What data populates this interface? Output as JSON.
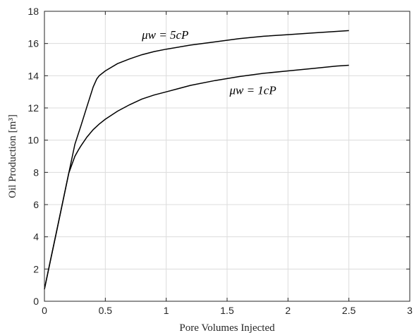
{
  "chart_data": {
    "type": "line",
    "xlabel": "Pore Volumes Injected",
    "ylabel": "Oil Production [m³]",
    "xlim": [
      0,
      3
    ],
    "ylim": [
      0,
      18
    ],
    "x_ticks": [
      "0",
      "0.5",
      "1",
      "1.5",
      "2",
      "2.5",
      "3"
    ],
    "y_ticks": [
      "0",
      "2",
      "4",
      "6",
      "8",
      "10",
      "12",
      "14",
      "16",
      "18"
    ],
    "grid": true,
    "legend": "none",
    "series": [
      {
        "color": "#000000",
        "x": [
          0,
          0.05,
          0.1,
          0.15,
          0.2,
          0.25,
          0.3,
          0.35,
          0.4,
          0.43,
          0.45,
          0.5,
          0.6,
          0.7,
          0.8,
          0.9,
          1.0,
          1.2,
          1.4,
          1.6,
          1.8,
          2.0,
          2.2,
          2.4,
          2.5
        ],
        "y": [
          0.75,
          2.55,
          4.35,
          6.15,
          7.95,
          9.75,
          10.9,
          12.1,
          13.3,
          13.8,
          14.0,
          14.3,
          14.75,
          15.05,
          15.3,
          15.5,
          15.65,
          15.9,
          16.1,
          16.3,
          16.45,
          16.55,
          16.65,
          16.75,
          16.8
        ]
      },
      {
        "color": "#000000",
        "x": [
          0,
          0.05,
          0.1,
          0.15,
          0.2,
          0.25,
          0.28,
          0.3,
          0.35,
          0.4,
          0.45,
          0.5,
          0.6,
          0.7,
          0.8,
          0.9,
          1.0,
          1.2,
          1.4,
          1.6,
          1.8,
          2.0,
          2.2,
          2.4,
          2.5
        ],
        "y": [
          0.75,
          2.55,
          4.35,
          6.15,
          7.95,
          9.0,
          9.4,
          9.65,
          10.2,
          10.65,
          11.0,
          11.3,
          11.8,
          12.2,
          12.55,
          12.8,
          13.0,
          13.4,
          13.7,
          13.95,
          14.15,
          14.3,
          14.45,
          14.6,
          14.65
        ]
      }
    ],
    "annotations": [
      {
        "text": "μw = 5cP",
        "x": 0.8,
        "y": 16.3
      },
      {
        "text": "μw = 1cP",
        "x": 1.52,
        "y": 12.85
      }
    ]
  }
}
